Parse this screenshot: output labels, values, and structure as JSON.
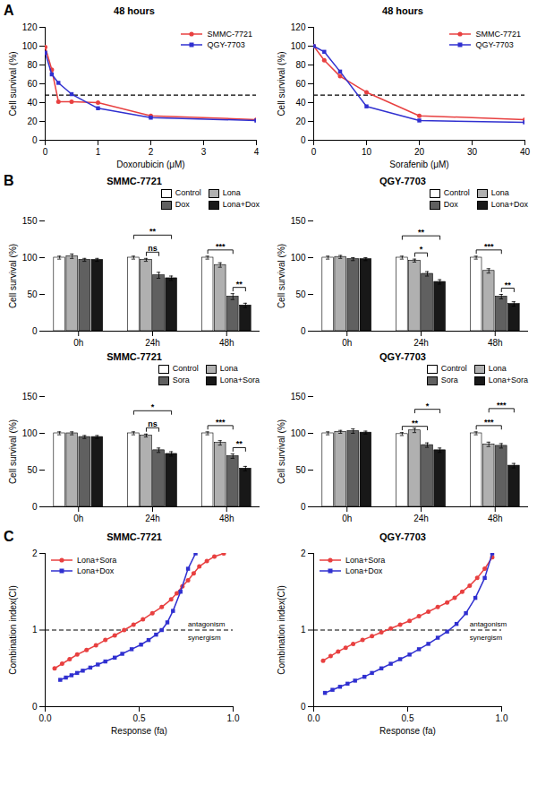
{
  "chart_data": [
    {
      "type": "line",
      "panel_label": "A",
      "title": "48 hours",
      "xlabel": "Doxorubicin (μM)",
      "ylabel": "Cell survival (%)",
      "xlim": [
        0,
        4
      ],
      "ylim": [
        0,
        120
      ],
      "xticks": [
        0,
        1,
        2,
        3,
        4
      ],
      "yticks": [
        0,
        20,
        40,
        60,
        80,
        100,
        120
      ],
      "grid": false,
      "legend": "upper right",
      "hline": 48,
      "series": [
        {
          "name": "SMMC-7721",
          "color": "#e84040",
          "marker": "circle",
          "x": [
            0,
            0.125,
            0.25,
            0.5,
            1,
            2,
            4
          ],
          "values": [
            99,
            75,
            41,
            41,
            40,
            26,
            22
          ]
        },
        {
          "name": "QGY-7703",
          "color": "#3030d0",
          "marker": "square",
          "x": [
            0,
            0.125,
            0.25,
            0.5,
            1,
            2,
            4
          ],
          "values": [
            93,
            70,
            61,
            49,
            34,
            24,
            21
          ]
        }
      ]
    },
    {
      "type": "line",
      "title": "48 hours",
      "xlabel": "Sorafenib (μM)",
      "ylabel": "Cell survival (%)",
      "xlim": [
        0,
        40
      ],
      "ylim": [
        0,
        120
      ],
      "xticks": [
        0,
        10,
        20,
        30,
        40
      ],
      "yticks": [
        0,
        20,
        40,
        60,
        80,
        100,
        120
      ],
      "grid": false,
      "legend": "upper right",
      "hline": 48,
      "series": [
        {
          "name": "SMMC-7721",
          "color": "#e84040",
          "marker": "circle",
          "x": [
            0,
            2,
            5,
            10,
            20,
            40
          ],
          "values": [
            100,
            85,
            68,
            51,
            26,
            22
          ]
        },
        {
          "name": "QGY-7703",
          "color": "#3030d0",
          "marker": "square",
          "x": [
            0,
            2,
            5,
            10,
            20,
            40
          ],
          "values": [
            100,
            94,
            73,
            36,
            21,
            19
          ]
        }
      ]
    },
    {
      "type": "bar",
      "panel_label": "B",
      "title": "SMMC-7721",
      "ylabel": "Cell survival (%)",
      "ylim": [
        0,
        150
      ],
      "yticks": [
        0,
        50,
        100,
        150
      ],
      "grid": false,
      "legend": "upper right",
      "categories": [
        "0h",
        "24h",
        "48h"
      ],
      "series": [
        {
          "name": "Control",
          "color": "white",
          "values": [
            100,
            100,
            100
          ],
          "errors": [
            2,
            2,
            2
          ]
        },
        {
          "name": "Lona",
          "color": "#b0b0b0",
          "values": [
            102,
            97,
            90
          ],
          "errors": [
            3,
            2,
            3
          ]
        },
        {
          "name": "Dox",
          "color": "#606060",
          "values": [
            97,
            76,
            47
          ],
          "errors": [
            2,
            4,
            4
          ]
        },
        {
          "name": "Lona+Dox",
          "color": "#181818",
          "values": [
            97,
            72,
            35
          ],
          "errors": [
            2,
            3,
            3
          ]
        }
      ],
      "significance": [
        {
          "category": "24h",
          "from": "Lona",
          "to": "Dox",
          "text": "ns"
        },
        {
          "category": "24h",
          "from": "Control",
          "to": "Lona+Dox",
          "text": "**"
        },
        {
          "category": "48h",
          "from": "Control",
          "to": "Dox",
          "text": "***"
        },
        {
          "category": "48h",
          "from": "Dox",
          "to": "Lona+Dox",
          "text": "**"
        }
      ]
    },
    {
      "type": "bar",
      "title": "QGY-7703",
      "ylabel": "Cell survival (%)",
      "ylim": [
        0,
        150
      ],
      "yticks": [
        0,
        50,
        100,
        150
      ],
      "grid": false,
      "legend": "upper right",
      "categories": [
        "0h",
        "24h",
        "48h"
      ],
      "series": [
        {
          "name": "Control",
          "color": "white",
          "values": [
            100,
            100,
            100
          ],
          "errors": [
            2,
            2,
            2
          ]
        },
        {
          "name": "Lona",
          "color": "#b0b0b0",
          "values": [
            101,
            96,
            82
          ],
          "errors": [
            2,
            2,
            3
          ]
        },
        {
          "name": "Dox",
          "color": "#606060",
          "values": [
            98,
            78,
            47
          ],
          "errors": [
            2,
            3,
            3
          ]
        },
        {
          "name": "Lona+Dox",
          "color": "#181818",
          "values": [
            98,
            67,
            37
          ],
          "errors": [
            2,
            3,
            3
          ]
        }
      ],
      "significance": [
        {
          "category": "24h",
          "from": "Lona",
          "to": "Dox",
          "text": "*"
        },
        {
          "category": "24h",
          "from": "Control",
          "to": "Lona+Dox",
          "text": "**"
        },
        {
          "category": "48h",
          "from": "Control",
          "to": "Dox",
          "text": "***"
        },
        {
          "category": "48h",
          "from": "Dox",
          "to": "Lona+Dox",
          "text": "**"
        }
      ]
    },
    {
      "type": "bar",
      "title": "SMMC-7721",
      "ylabel": "Cell survival (%)",
      "ylim": [
        0,
        150
      ],
      "yticks": [
        0,
        50,
        100,
        150
      ],
      "grid": false,
      "legend": "upper right",
      "categories": [
        "0h",
        "24h",
        "48h"
      ],
      "series": [
        {
          "name": "Control",
          "color": "white",
          "values": [
            100,
            100,
            100
          ],
          "errors": [
            2,
            2,
            2
          ]
        },
        {
          "name": "Lona",
          "color": "#b0b0b0",
          "values": [
            100,
            97,
            87
          ],
          "errors": [
            2,
            2,
            3
          ]
        },
        {
          "name": "Sora",
          "color": "#606060",
          "values": [
            95,
            77,
            69
          ],
          "errors": [
            2,
            3,
            3
          ]
        },
        {
          "name": "Lona+Sora",
          "color": "#181818",
          "values": [
            95,
            72,
            52
          ],
          "errors": [
            2,
            3,
            3
          ]
        }
      ],
      "significance": [
        {
          "category": "24h",
          "from": "Lona",
          "to": "Sora",
          "text": "ns"
        },
        {
          "category": "24h",
          "from": "Control",
          "to": "Lona+Sora",
          "text": "*"
        },
        {
          "category": "48h",
          "from": "Control",
          "to": "Sora",
          "text": "***"
        },
        {
          "category": "48h",
          "from": "Sora",
          "to": "Lona+Sora",
          "text": "**"
        }
      ]
    },
    {
      "type": "bar",
      "title": "QGY-7703",
      "ylabel": "Cell survival (%)",
      "ylim": [
        0,
        150
      ],
      "yticks": [
        0,
        50,
        100,
        150
      ],
      "grid": false,
      "legend": "upper right",
      "categories": [
        "0h",
        "24h",
        "48h"
      ],
      "series": [
        {
          "name": "Control",
          "color": "white",
          "values": [
            100,
            99,
            100
          ],
          "errors": [
            2,
            2,
            2
          ]
        },
        {
          "name": "Lona",
          "color": "#b0b0b0",
          "values": [
            102,
            104,
            85
          ],
          "errors": [
            2,
            3,
            3
          ]
        },
        {
          "name": "Sora",
          "color": "#606060",
          "values": [
            103,
            84,
            83
          ],
          "errors": [
            3,
            3,
            3
          ]
        },
        {
          "name": "Lona+Sora",
          "color": "#181818",
          "values": [
            101,
            77,
            56
          ],
          "errors": [
            2,
            3,
            3
          ]
        }
      ],
      "significance": [
        {
          "category": "24h",
          "from": "Control",
          "to": "Sora",
          "text": "**"
        },
        {
          "category": "24h",
          "from": "Lona",
          "to": "Lona+Sora",
          "text": "*"
        },
        {
          "category": "48h",
          "from": "Control",
          "to": "Sora",
          "text": "***"
        },
        {
          "category": "48h",
          "from": "Lona",
          "to": "Lona+Sora",
          "text": "***"
        }
      ]
    },
    {
      "type": "line",
      "panel_label": "C",
      "title": "SMMC-7721",
      "xlabel": "Response (fa)",
      "ylabel": "Combination index(CI)",
      "xlim": [
        0,
        1
      ],
      "ylim": [
        0,
        2
      ],
      "xticks": [
        {
          "value": 0,
          "label": "0.0"
        },
        0.5,
        {
          "value": 1,
          "label": "1.0"
        }
      ],
      "yticks": [
        0,
        1,
        2
      ],
      "grid": false,
      "legend": "upper left",
      "hline": 1,
      "series": [
        {
          "name": "Lona+Sora",
          "color": "#e84040",
          "marker": "circle",
          "x": [
            0.05,
            0.09,
            0.13,
            0.17,
            0.22,
            0.27,
            0.32,
            0.37,
            0.42,
            0.47,
            0.52,
            0.57,
            0.62,
            0.67,
            0.7,
            0.73,
            0.76,
            0.79,
            0.82,
            0.86,
            0.9,
            0.95
          ],
          "values": [
            0.5,
            0.56,
            0.62,
            0.68,
            0.74,
            0.8,
            0.87,
            0.93,
            1.0,
            1.07,
            1.14,
            1.22,
            1.3,
            1.4,
            1.48,
            1.57,
            1.65,
            1.74,
            1.83,
            1.9,
            1.96,
            2.0
          ]
        },
        {
          "name": "Lona+Dox",
          "color": "#3030d0",
          "marker": "square",
          "x": [
            0.08,
            0.11,
            0.14,
            0.17,
            0.2,
            0.24,
            0.28,
            0.32,
            0.37,
            0.41,
            0.46,
            0.51,
            0.55,
            0.59,
            0.62,
            0.65,
            0.68,
            0.72,
            0.76,
            0.8
          ],
          "values": [
            0.35,
            0.38,
            0.41,
            0.44,
            0.47,
            0.51,
            0.55,
            0.59,
            0.64,
            0.69,
            0.75,
            0.81,
            0.87,
            0.94,
            1.0,
            1.1,
            1.25,
            1.5,
            1.8,
            2.0
          ]
        }
      ],
      "annotations": [
        {
          "text": "antagonism",
          "x": 0.76,
          "y": 1.05
        },
        {
          "text": "synergism",
          "x": 0.76,
          "y": 0.94
        }
      ]
    },
    {
      "type": "line",
      "title": "QGY-7703",
      "xlabel": "Response (fa)",
      "ylabel": "Combination index(CI)",
      "xlim": [
        0,
        1
      ],
      "ylim": [
        0,
        2
      ],
      "xticks": [
        {
          "value": 0,
          "label": "0.0"
        },
        0.5,
        {
          "value": 1,
          "label": "1.0"
        }
      ],
      "yticks": [
        0,
        1,
        2
      ],
      "grid": false,
      "legend": "upper left",
      "hline": 1,
      "series": [
        {
          "name": "Lona+Sora",
          "color": "#e84040",
          "marker": "circle",
          "x": [
            0.05,
            0.09,
            0.13,
            0.17,
            0.21,
            0.26,
            0.31,
            0.36,
            0.41,
            0.46,
            0.51,
            0.56,
            0.61,
            0.66,
            0.71,
            0.75,
            0.79,
            0.83,
            0.87,
            0.91,
            0.95
          ],
          "values": [
            0.6,
            0.66,
            0.72,
            0.77,
            0.82,
            0.87,
            0.92,
            0.97,
            1.02,
            1.07,
            1.12,
            1.18,
            1.24,
            1.3,
            1.36,
            1.42,
            1.5,
            1.58,
            1.68,
            1.8,
            1.95
          ]
        },
        {
          "name": "Lona+Dox",
          "color": "#3030d0",
          "marker": "square",
          "x": [
            0.06,
            0.1,
            0.14,
            0.18,
            0.22,
            0.27,
            0.31,
            0.36,
            0.41,
            0.46,
            0.51,
            0.56,
            0.61,
            0.66,
            0.71,
            0.76,
            0.81,
            0.86,
            0.91,
            0.95
          ],
          "values": [
            0.18,
            0.22,
            0.26,
            0.3,
            0.34,
            0.39,
            0.44,
            0.5,
            0.56,
            0.62,
            0.68,
            0.75,
            0.82,
            0.9,
            0.98,
            1.08,
            1.22,
            1.42,
            1.68,
            2.0
          ]
        }
      ],
      "annotations": [
        {
          "text": "synergism",
          "x": 0.83,
          "y": 0.94
        },
        {
          "text": "antagonism",
          "x": 0.83,
          "y": 1.05
        }
      ]
    }
  ]
}
